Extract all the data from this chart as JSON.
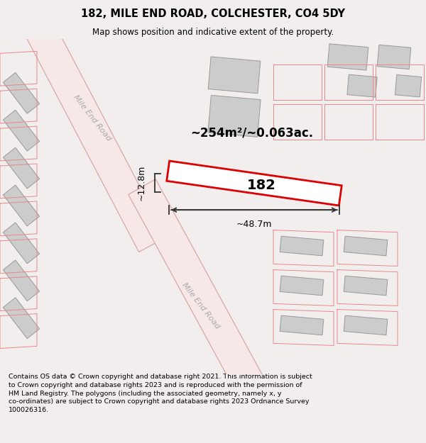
{
  "title": "182, MILE END ROAD, COLCHESTER, CO4 5DY",
  "subtitle": "Map shows position and indicative extent of the property.",
  "footer": "Contains OS data © Crown copyright and database right 2021. This information is subject\nto Crown copyright and database rights 2023 and is reproduced with the permission of\nHM Land Registry. The polygons (including the associated geometry, namely x, y\nco-ordinates) are subject to Crown copyright and database rights 2023 Ordnance Survey\n100026316.",
  "bg_color": "#f2eeee",
  "map_bg": "#ffffff",
  "road_fill": "#f7e8e8",
  "road_edge": "#d4a0a0",
  "parcel_color": "#e88888",
  "building_fill": "#cccccc",
  "building_edge": "#999999",
  "highlight_color": "#dd0000",
  "dim_color": "#333333",
  "area_text": "~254m²/~0.063ac.",
  "label_182": "182",
  "width_label": "~48.7m",
  "height_label": "~12.8m",
  "road1_label": "Mile End Road",
  "road2_label": "Mile End Road"
}
